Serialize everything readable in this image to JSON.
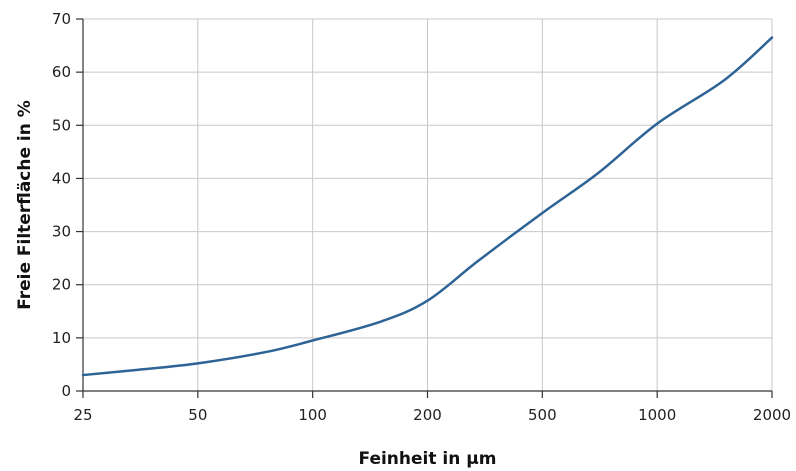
{
  "chart_data": {
    "type": "line",
    "xlabel": "Feinheit in µm",
    "ylabel": "Freie Filterfläche in %",
    "x_categories": [
      "25",
      "50",
      "100",
      "200",
      "500",
      "1000",
      "2000"
    ],
    "y_ticks": [
      "0",
      "10",
      "20",
      "30",
      "40",
      "50",
      "60",
      "70"
    ],
    "ylim": [
      0,
      70
    ],
    "grid": true,
    "series": [
      {
        "color": "#2e6396",
        "points": [
          {
            "x": 25,
            "y": 3.0
          },
          {
            "x": 35,
            "y": 4.0
          },
          {
            "x": 50,
            "y": 5.2
          },
          {
            "x": 75,
            "y": 7.3
          },
          {
            "x": 100,
            "y": 9.5
          },
          {
            "x": 150,
            "y": 13.0
          },
          {
            "x": 200,
            "y": 17.0
          },
          {
            "x": 300,
            "y": 24.5
          },
          {
            "x": 500,
            "y": 33.5
          },
          {
            "x": 700,
            "y": 41.0
          },
          {
            "x": 1000,
            "y": 50.3
          },
          {
            "x": 1500,
            "y": 58.5
          },
          {
            "x": 2000,
            "y": 66.5
          }
        ]
      }
    ]
  }
}
